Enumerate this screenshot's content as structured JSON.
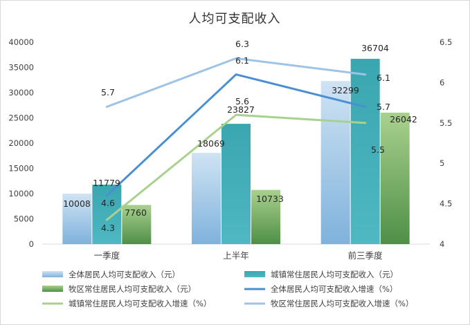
{
  "chart_data": {
    "type": "bar",
    "title": "人均可支配收入",
    "categories": [
      "一季度",
      "上半年",
      "前三季度"
    ],
    "left_axis": {
      "ylim": [
        0,
        40000
      ],
      "ticks": [
        "0",
        "5000",
        "10000",
        "15000",
        "20000",
        "25000",
        "30000",
        "35000",
        "40000"
      ]
    },
    "right_axis": {
      "ylim": [
        4,
        6.5
      ],
      "ticks": [
        "4",
        "4.5",
        "5",
        "5.5",
        "6",
        "6.5"
      ]
    },
    "bar_series": [
      {
        "name": "全体居民人均可支配收入（元）",
        "values": [
          10008,
          18069,
          32299
        ],
        "color": "#8fbde0",
        "labels": [
          "10008",
          "18069",
          "32299"
        ]
      },
      {
        "name": "城镇常住居民人均可支配收入（元）",
        "values": [
          11779,
          23827,
          36704
        ],
        "color": "#3aa6b0",
        "labels": [
          "11779",
          "23827",
          "36704"
        ]
      },
      {
        "name": "牧区常住居民人均可支配收入（元）",
        "values": [
          7760,
          10733,
          26042
        ],
        "color": "#6fa85f",
        "labels": [
          "7760",
          "10733",
          "26042"
        ]
      }
    ],
    "line_series": [
      {
        "name": "全体居民人均可支配收入增速（%）",
        "values": [
          4.6,
          6.1,
          5.7
        ],
        "color": "#4a8fd4",
        "labels": [
          "4.6",
          "6.1",
          "5.7"
        ]
      },
      {
        "name": "城镇常住居民人均可支配收入增速（%）",
        "values": [
          4.3,
          5.6,
          5.5
        ],
        "color": "#a9d18e",
        "labels": [
          "4.3",
          "5.6",
          "5.5"
        ]
      },
      {
        "name": "牧区常住居民人均可支配收入增速（%）",
        "values": [
          5.7,
          6.3,
          6.1
        ],
        "color": "#9dc3e6",
        "labels": [
          "5.7",
          "6.3",
          "6.1"
        ]
      }
    ],
    "grid": false,
    "legend_position": "bottom"
  }
}
